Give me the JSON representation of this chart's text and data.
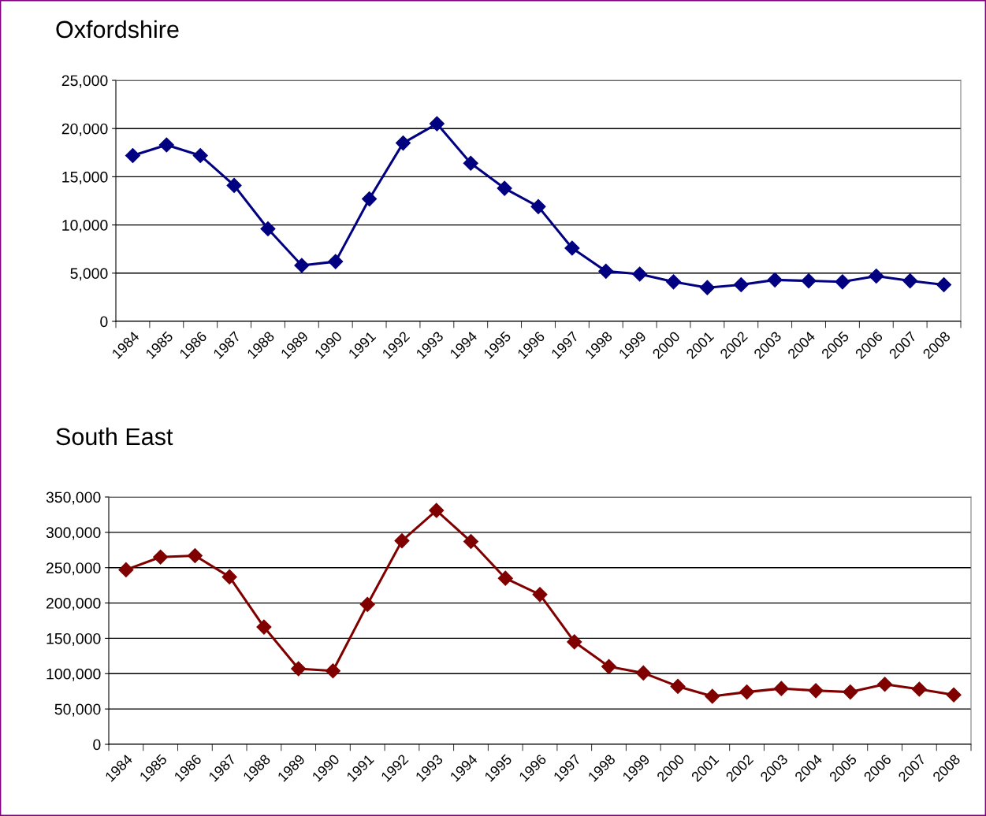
{
  "chart_data": [
    {
      "type": "line",
      "title": "Oxfordshire",
      "categories": [
        "1984",
        "1985",
        "1986",
        "1987",
        "1988",
        "1989",
        "1990",
        "1991",
        "1992",
        "1993",
        "1994",
        "1995",
        "1996",
        "1997",
        "1998",
        "1999",
        "2000",
        "2001",
        "2002",
        "2003",
        "2004",
        "2005",
        "2006",
        "2007",
        "2008"
      ],
      "series": [
        {
          "color": "#000080",
          "values": [
            17200,
            18300,
            17200,
            14100,
            9600,
            5800,
            6200,
            12700,
            18500,
            20500,
            16400,
            13800,
            11900,
            7600,
            5200,
            4900,
            4100,
            3500,
            3800,
            4300,
            4200,
            4100,
            4700,
            4200,
            3800
          ]
        }
      ],
      "ylim": [
        0,
        25000
      ],
      "yticks": [
        {
          "value": 0,
          "label": "0"
        },
        {
          "value": 5000,
          "label": "5,000"
        },
        {
          "value": 10000,
          "label": "10,000"
        },
        {
          "value": 15000,
          "label": "15,000"
        },
        {
          "value": 20000,
          "label": "20,000"
        },
        {
          "value": 25000,
          "label": "25,000"
        }
      ],
      "grid": "y",
      "legend": false,
      "marker": "diamond",
      "line_style": "solid"
    },
    {
      "type": "line",
      "title": "South East",
      "categories": [
        "1984",
        "1985",
        "1986",
        "1987",
        "1988",
        "1989",
        "1990",
        "1991",
        "1992",
        "1993",
        "1994",
        "1995",
        "1996",
        "1997",
        "1998",
        "1999",
        "2000",
        "2001",
        "2002",
        "2003",
        "2004",
        "2005",
        "2006",
        "2007",
        "2008"
      ],
      "series": [
        {
          "color": "#800000",
          "values": [
            247000,
            265000,
            267000,
            237000,
            166000,
            107000,
            104000,
            198000,
            288000,
            331000,
            287000,
            235000,
            212000,
            145000,
            110000,
            101000,
            82000,
            68000,
            74000,
            79000,
            76000,
            74000,
            85000,
            78000,
            70000
          ]
        }
      ],
      "ylim": [
        0,
        350000
      ],
      "yticks": [
        {
          "value": 0,
          "label": "0"
        },
        {
          "value": 50000,
          "label": "50,000"
        },
        {
          "value": 100000,
          "label": "100,000"
        },
        {
          "value": 150000,
          "label": "150,000"
        },
        {
          "value": 200000,
          "label": "200,000"
        },
        {
          "value": 250000,
          "label": "250,000"
        },
        {
          "value": 300000,
          "label": "300,000"
        },
        {
          "value": 350000,
          "label": "350,000"
        }
      ],
      "grid": "y",
      "legend": false,
      "marker": "diamond",
      "line_style": "solid"
    }
  ]
}
